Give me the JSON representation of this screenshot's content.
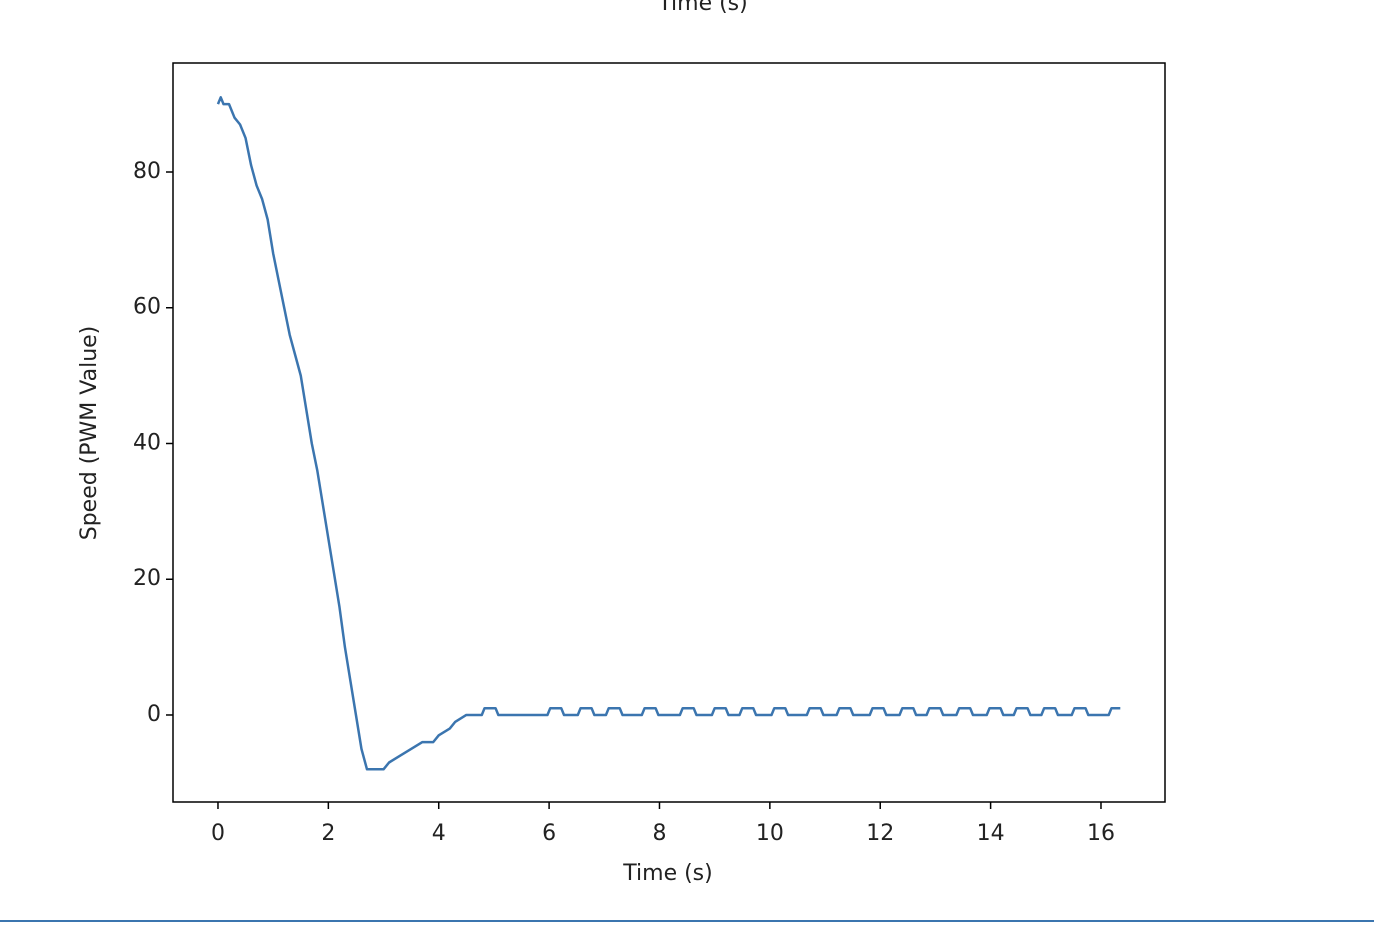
{
  "header_text": "Time (s)",
  "chart_data": {
    "type": "line",
    "x_label": "Time (s)",
    "y_label": "Speed (PWM Value)",
    "xlim": [
      -0.815,
      17.16
    ],
    "ylim": [
      -12.82,
      96.06
    ],
    "xticks": [
      0,
      2,
      4,
      6,
      8,
      10,
      12,
      14,
      16
    ],
    "yticks": [
      0,
      20,
      40,
      60,
      80
    ],
    "series": [
      {
        "name": "Speed",
        "color": "#3b75af",
        "x": [
          0,
          0.05,
          0.1,
          0.2,
          0.3,
          0.4,
          0.5,
          0.6,
          0.7,
          0.8,
          0.9,
          1.0,
          1.1,
          1.2,
          1.3,
          1.4,
          1.5,
          1.6,
          1.7,
          1.8,
          1.9,
          2.0,
          2.1,
          2.2,
          2.3,
          2.4,
          2.5,
          2.6,
          2.7,
          2.8,
          3.0,
          3.1,
          3.3,
          3.5,
          3.7,
          3.9,
          4.0,
          4.2,
          4.3,
          4.5,
          4.78,
          4.83,
          5.03,
          5.08,
          5.97,
          6.02,
          6.22,
          6.27,
          6.52,
          6.57,
          6.77,
          6.82,
          7.03,
          7.08,
          7.28,
          7.33,
          7.68,
          7.73,
          7.93,
          7.98,
          8.37,
          8.42,
          8.62,
          8.67,
          8.95,
          9.0,
          9.2,
          9.25,
          9.45,
          9.5,
          9.7,
          9.75,
          10.03,
          10.08,
          10.28,
          10.33,
          10.67,
          10.72,
          10.92,
          10.97,
          11.21,
          11.26,
          11.46,
          11.51,
          11.81,
          11.86,
          12.06,
          12.11,
          12.35,
          12.4,
          12.6,
          12.65,
          12.84,
          12.89,
          13.09,
          13.14,
          13.38,
          13.43,
          13.63,
          13.68,
          13.93,
          13.98,
          14.18,
          14.23,
          14.42,
          14.47,
          14.67,
          14.72,
          14.92,
          14.97,
          15.17,
          15.22,
          15.47,
          15.52,
          15.72,
          15.77,
          16.14,
          16.19,
          16.35
        ],
        "values": [
          90,
          91,
          90,
          90,
          88,
          87,
          85,
          81,
          78,
          76,
          73,
          68,
          64,
          60,
          56,
          53,
          50,
          45,
          40,
          36,
          31,
          26,
          21,
          16,
          10,
          5,
          0,
          -5,
          -8,
          -8,
          -8,
          -7,
          -6,
          -5,
          -4,
          -4,
          -3,
          -2,
          -1,
          0,
          0,
          1,
          1,
          0,
          0,
          1,
          1,
          0,
          0,
          1,
          1,
          0,
          0,
          1,
          1,
          0,
          0,
          1,
          1,
          0,
          0,
          1,
          1,
          0,
          0,
          1,
          1,
          0,
          0,
          1,
          1,
          0,
          0,
          1,
          1,
          0,
          0,
          1,
          1,
          0,
          0,
          1,
          1,
          0,
          0,
          1,
          1,
          0,
          0,
          1,
          1,
          0,
          0,
          1,
          1,
          0,
          0,
          1,
          1,
          0,
          0,
          1,
          1,
          0,
          0,
          1,
          1,
          0,
          0,
          1,
          1,
          0,
          0,
          1,
          1,
          0,
          0,
          1,
          1
        ]
      }
    ]
  }
}
